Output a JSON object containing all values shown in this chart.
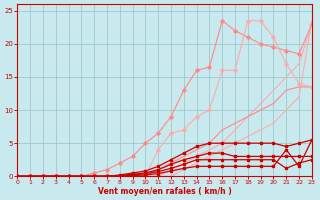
{
  "xlabel": "Vent moyen/en rafales ( km/h )",
  "xlim": [
    0,
    23
  ],
  "ylim": [
    0,
    26
  ],
  "xticks": [
    0,
    1,
    2,
    3,
    4,
    5,
    6,
    7,
    8,
    9,
    10,
    11,
    12,
    13,
    14,
    15,
    16,
    17,
    18,
    19,
    20,
    21,
    22,
    23
  ],
  "yticks": [
    0,
    5,
    10,
    15,
    20,
    25
  ],
  "bg_color": "#c8eaee",
  "grid_color": "#a0c8cc",
  "axis_color": "#cc0000",
  "x": [
    0,
    1,
    2,
    3,
    4,
    5,
    6,
    7,
    8,
    9,
    10,
    11,
    12,
    13,
    14,
    15,
    16,
    17,
    18,
    19,
    20,
    21,
    22,
    23
  ],
  "ref1_color": "#ffaaaa",
  "ref2_color": "#ffaaaa",
  "ref3_color": "#ff8888",
  "jagged1_color": "#ff8888",
  "jagged2_color": "#ffaaaa",
  "dark_color": "#cc0000",
  "ref1_y": [
    0,
    0,
    0,
    0,
    0,
    0,
    0,
    0,
    0,
    0,
    0,
    0,
    0,
    1,
    2,
    3,
    4,
    5,
    6,
    7,
    8,
    10,
    12,
    23.5
  ],
  "ref2_y": [
    0,
    0,
    0,
    0,
    0,
    0,
    0,
    0,
    0,
    0,
    0,
    0,
    1,
    2,
    3,
    4,
    5,
    7,
    9,
    11,
    13,
    15,
    17,
    23
  ],
  "ref3_y": [
    0,
    0,
    0,
    0,
    0,
    0,
    0,
    0,
    0,
    0,
    0,
    1,
    2,
    3,
    4,
    5,
    7,
    8,
    9,
    10,
    11,
    13,
    13.5,
    13.5
  ],
  "jagged1_y": [
    0,
    0,
    0,
    0,
    0,
    0,
    0.5,
    1,
    2,
    3,
    5,
    6.5,
    9,
    13,
    16,
    16.5,
    23.5,
    22,
    21,
    20,
    19.5,
    19,
    18.5,
    23
  ],
  "jagged2_y": [
    0,
    0,
    0,
    0,
    0,
    0,
    0,
    0,
    0,
    0,
    0,
    4,
    6.5,
    7,
    9,
    10,
    16,
    16,
    23.5,
    23.5,
    21,
    17,
    14,
    13.5
  ],
  "dark1_y": [
    0,
    0,
    0,
    0,
    0,
    0,
    0,
    0,
    0.2,
    0.5,
    0.8,
    1.5,
    2.5,
    3.5,
    4.5,
    5,
    5,
    5,
    5,
    5,
    5,
    4.5,
    5,
    5.5
  ],
  "dark2_y": [
    0,
    0,
    0,
    0,
    0,
    0,
    0,
    0,
    0.1,
    0.3,
    0.5,
    1.0,
    1.8,
    2.5,
    3,
    3.5,
    3.5,
    3,
    3,
    3,
    3,
    3,
    3,
    3
  ],
  "dark3_y": [
    0,
    0,
    0,
    0,
    0,
    0,
    0,
    0,
    0.1,
    0.2,
    0.4,
    0.7,
    1.2,
    1.8,
    2.5,
    2.5,
    2.5,
    2.5,
    2.5,
    2.5,
    2.5,
    1.2,
    2.0,
    2.5
  ],
  "dark4_y": [
    0,
    0,
    0,
    0,
    0,
    0,
    0,
    0,
    0.05,
    0.1,
    0.2,
    0.4,
    0.8,
    1.2,
    1.5,
    1.5,
    1.5,
    1.5,
    1.5,
    1.5,
    1.5,
    4.0,
    1.5,
    5.5
  ]
}
